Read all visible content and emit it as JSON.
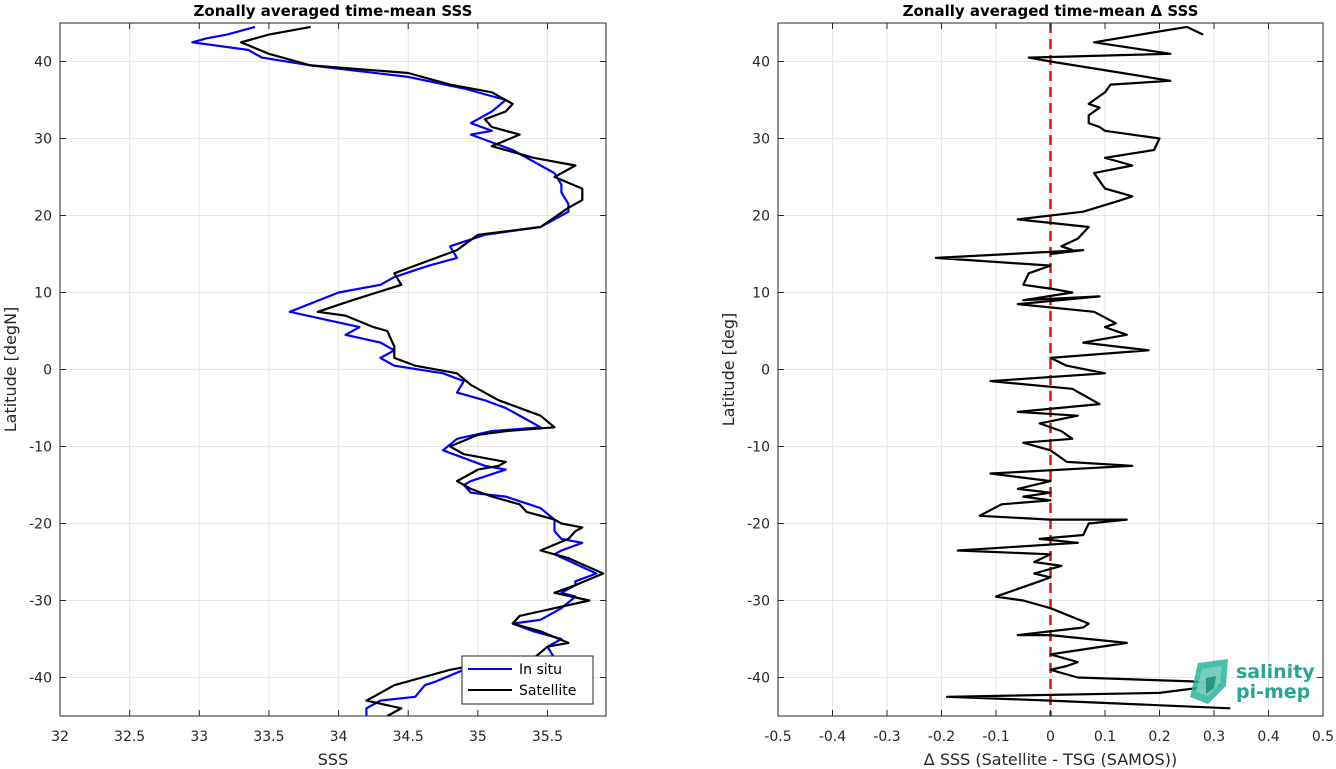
{
  "chart_data": [
    {
      "type": "line",
      "title": "Zonally averaged time-mean SSS",
      "xlabel": "SSS",
      "ylabel": "Latitude [degN]",
      "xlim": [
        32,
        35.92
      ],
      "ylim": [
        -45,
        45
      ],
      "xticks": [
        32,
        32.5,
        33,
        33.5,
        34,
        34.5,
        35,
        35.5
      ],
      "xtick_labels": [
        "32",
        "32.5",
        "33",
        "33.5",
        "34",
        "34.5",
        "35",
        "35.5"
      ],
      "yticks": [
        -40,
        -30,
        -20,
        -10,
        0,
        10,
        20,
        30,
        40
      ],
      "ytick_labels": [
        "-40",
        "-30",
        "-20",
        "-10",
        "0",
        "10",
        "20",
        "30",
        "40"
      ],
      "grid": true,
      "legend_location": "bottom-right",
      "series": [
        {
          "name": "In situ",
          "color": "#0000ff",
          "points": [
            [
              33.4,
              44.5
            ],
            [
              33.2,
              43.5
            ],
            [
              33.05,
              43
            ],
            [
              32.95,
              42.5
            ],
            [
              33.35,
              41.5
            ],
            [
              33.45,
              40.5
            ],
            [
              33.8,
              39.5
            ],
            [
              34.5,
              38
            ],
            [
              34.9,
              36.5
            ],
            [
              35.2,
              35
            ],
            [
              35.1,
              33.5
            ],
            [
              34.95,
              32
            ],
            [
              35.1,
              31
            ],
            [
              34.95,
              30.5
            ],
            [
              35.25,
              28.5
            ],
            [
              35.55,
              25.5
            ],
            [
              35.6,
              24
            ],
            [
              35.6,
              23
            ],
            [
              35.65,
              21.5
            ],
            [
              35.65,
              20.5
            ],
            [
              35.45,
              18.5
            ],
            [
              35.05,
              17.5
            ],
            [
              34.8,
              16
            ],
            [
              34.85,
              14.5
            ],
            [
              34.65,
              13.5
            ],
            [
              34.4,
              12
            ],
            [
              34.3,
              11
            ],
            [
              34.0,
              10
            ],
            [
              33.65,
              7.5
            ],
            [
              34.15,
              5.5
            ],
            [
              34.05,
              4.5
            ],
            [
              34.3,
              3.5
            ],
            [
              34.4,
              2.5
            ],
            [
              34.3,
              1.5
            ],
            [
              34.4,
              0.5
            ],
            [
              34.75,
              -0.5
            ],
            [
              34.9,
              -1.5
            ],
            [
              34.85,
              -3
            ],
            [
              35.05,
              -4
            ],
            [
              35.2,
              -5
            ],
            [
              35.4,
              -7
            ],
            [
              35.45,
              -7.5
            ],
            [
              35.1,
              -8
            ],
            [
              34.85,
              -9
            ],
            [
              34.75,
              -10.5
            ],
            [
              35.05,
              -12.5
            ],
            [
              35.2,
              -13
            ],
            [
              34.95,
              -14.5
            ],
            [
              34.9,
              -15
            ],
            [
              34.95,
              -16
            ],
            [
              35.2,
              -16.5
            ],
            [
              35.45,
              -18
            ],
            [
              35.55,
              -19.5
            ],
            [
              35.55,
              -21
            ],
            [
              35.6,
              -22
            ],
            [
              35.75,
              -22.5
            ],
            [
              35.6,
              -23.5
            ],
            [
              35.55,
              -24
            ],
            [
              35.85,
              -26.5
            ],
            [
              35.7,
              -27.5
            ],
            [
              35.7,
              -28
            ],
            [
              35.6,
              -29
            ],
            [
              35.7,
              -29.5
            ],
            [
              35.6,
              -31
            ],
            [
              35.45,
              -32.5
            ],
            [
              35.25,
              -33
            ],
            [
              35.4,
              -34
            ],
            [
              35.6,
              -35
            ],
            [
              35.5,
              -36
            ],
            [
              35.55,
              -37.5
            ],
            [
              35.1,
              -38
            ],
            [
              34.9,
              -39
            ],
            [
              34.7,
              -40.5
            ],
            [
              34.62,
              -41
            ],
            [
              34.55,
              -42.5
            ],
            [
              34.3,
              -43
            ],
            [
              34.2,
              -44
            ],
            [
              34.2,
              -45
            ]
          ]
        },
        {
          "name": "Satellite",
          "color": "#000000",
          "points": [
            [
              33.8,
              44.5
            ],
            [
              33.5,
              43.5
            ],
            [
              33.3,
              42.5
            ],
            [
              33.5,
              41
            ],
            [
              33.8,
              39.5
            ],
            [
              34.5,
              38.5
            ],
            [
              34.8,
              37
            ],
            [
              35.1,
              36
            ],
            [
              35.25,
              34.5
            ],
            [
              35.2,
              33.5
            ],
            [
              35.05,
              32.5
            ],
            [
              35.1,
              31.5
            ],
            [
              35.3,
              30.5
            ],
            [
              35.1,
              29
            ],
            [
              35.4,
              27.5
            ],
            [
              35.7,
              26.5
            ],
            [
              35.55,
              25
            ],
            [
              35.75,
              23.5
            ],
            [
              35.75,
              22
            ],
            [
              35.65,
              21
            ],
            [
              35.45,
              18.5
            ],
            [
              35.0,
              17.5
            ],
            [
              34.85,
              15.5
            ],
            [
              34.7,
              14.5
            ],
            [
              34.4,
              12.5
            ],
            [
              34.45,
              11
            ],
            [
              34.1,
              9
            ],
            [
              33.85,
              7.5
            ],
            [
              34.05,
              7
            ],
            [
              34.25,
              5.5
            ],
            [
              34.35,
              5
            ],
            [
              34.4,
              3
            ],
            [
              34.4,
              2
            ],
            [
              34.4,
              1.5
            ],
            [
              34.55,
              0.5
            ],
            [
              34.85,
              -0.5
            ],
            [
              34.95,
              -2
            ],
            [
              35.15,
              -4
            ],
            [
              35.45,
              -6
            ],
            [
              35.55,
              -7.5
            ],
            [
              35.2,
              -8
            ],
            [
              35.0,
              -8.5
            ],
            [
              34.8,
              -10
            ],
            [
              34.9,
              -11
            ],
            [
              35.2,
              -12
            ],
            [
              35.15,
              -12.5
            ],
            [
              35.0,
              -13
            ],
            [
              34.85,
              -14.5
            ],
            [
              34.95,
              -15.5
            ],
            [
              35.1,
              -16.5
            ],
            [
              35.3,
              -17.5
            ],
            [
              35.35,
              -18.5
            ],
            [
              35.55,
              -19.5
            ],
            [
              35.6,
              -20
            ],
            [
              35.75,
              -20.5
            ],
            [
              35.7,
              -21
            ],
            [
              35.65,
              -22
            ],
            [
              35.45,
              -23.5
            ],
            [
              35.65,
              -24.5
            ],
            [
              35.9,
              -26.5
            ],
            [
              35.7,
              -28
            ],
            [
              35.55,
              -29
            ],
            [
              35.8,
              -30
            ],
            [
              35.55,
              -31
            ],
            [
              35.3,
              -32
            ],
            [
              35.25,
              -33
            ],
            [
              35.45,
              -34
            ],
            [
              35.65,
              -35.5
            ],
            [
              35.5,
              -36
            ],
            [
              35.4,
              -37.5
            ],
            [
              35.1,
              -38
            ],
            [
              34.8,
              -39
            ],
            [
              34.6,
              -40
            ],
            [
              34.4,
              -41
            ],
            [
              34.25,
              -42.5
            ],
            [
              34.2,
              -43
            ],
            [
              34.45,
              -44
            ],
            [
              34.35,
              -45
            ]
          ]
        }
      ]
    },
    {
      "type": "line",
      "title": "Zonally averaged time-mean Δ SSS",
      "xlabel": "Δ SSS (Satellite - TSG (SAMOS))",
      "ylabel": "Latitude [deg]",
      "xlim": [
        -0.5,
        0.5
      ],
      "ylim": [
        -45,
        45
      ],
      "xticks": [
        -0.5,
        -0.4,
        -0.3,
        -0.2,
        -0.1,
        0,
        0.1,
        0.2,
        0.3,
        0.4,
        0.5
      ],
      "xtick_labels": [
        "-0.5",
        "-0.4",
        "-0.3",
        "-0.2",
        "-0.1",
        "0",
        "0.1",
        "0.2",
        "0.3",
        "0.4",
        "0.5"
      ],
      "yticks": [
        -40,
        -30,
        -20,
        -10,
        0,
        10,
        20,
        30,
        40
      ],
      "ytick_labels": [
        "-40",
        "-30",
        "-20",
        "-10",
        "0",
        "10",
        "20",
        "30",
        "40"
      ],
      "grid": true,
      "reference_line": {
        "x": 0,
        "color": "#dd1111",
        "style": "dashed"
      },
      "series": [
        {
          "color": "#000000",
          "points": [
            [
              0.28,
              43.5
            ],
            [
              0.25,
              44.5
            ],
            [
              0.08,
              42.5
            ],
            [
              0.22,
              41
            ],
            [
              -0.04,
              40.5
            ],
            [
              0.0,
              40
            ],
            [
              0.22,
              37.5
            ],
            [
              0.11,
              37
            ],
            [
              0.1,
              36
            ],
            [
              0.09,
              35.5
            ],
            [
              0.07,
              34.5
            ],
            [
              0.09,
              34
            ],
            [
              0.07,
              33
            ],
            [
              0.07,
              32
            ],
            [
              0.09,
              31.5
            ],
            [
              0.1,
              31
            ],
            [
              0.2,
              30
            ],
            [
              0.19,
              28.5
            ],
            [
              0.1,
              27.5
            ],
            [
              0.15,
              26.5
            ],
            [
              0.08,
              25.5
            ],
            [
              0.1,
              23.5
            ],
            [
              0.15,
              22.5
            ],
            [
              0.13,
              22
            ],
            [
              0.06,
              20.5
            ],
            [
              -0.06,
              19.5
            ],
            [
              0.07,
              18.5
            ],
            [
              0.05,
              17
            ],
            [
              0.02,
              16
            ],
            [
              0.04,
              15.5
            ],
            [
              0.0,
              15
            ],
            [
              0.06,
              15.5
            ],
            [
              -0.21,
              14.5
            ],
            [
              0.0,
              13.5
            ],
            [
              -0.04,
              12.5
            ],
            [
              -0.05,
              11
            ],
            [
              0.0,
              10.5
            ],
            [
              0.04,
              10
            ],
            [
              -0.05,
              9
            ],
            [
              0.09,
              9.5
            ],
            [
              -0.06,
              8.5
            ],
            [
              0.08,
              7.5
            ],
            [
              0.12,
              6
            ],
            [
              0.1,
              5.5
            ],
            [
              0.14,
              4.5
            ],
            [
              0.06,
              3.5
            ],
            [
              0.18,
              2.5
            ],
            [
              0.0,
              1.5
            ],
            [
              0.03,
              0.5
            ],
            [
              0.1,
              -0.5
            ],
            [
              -0.11,
              -1.5
            ],
            [
              0.04,
              -2.5
            ],
            [
              0.09,
              -4.5
            ],
            [
              -0.06,
              -5.5
            ],
            [
              0.05,
              -6
            ],
            [
              -0.02,
              -7
            ],
            [
              0.02,
              -8
            ],
            [
              0.04,
              -9
            ],
            [
              -0.05,
              -9.5
            ],
            [
              0.0,
              -10.5
            ],
            [
              0.03,
              -12
            ],
            [
              0.15,
              -12.5
            ],
            [
              -0.11,
              -13.5
            ],
            [
              0.0,
              -14.5
            ],
            [
              -0.06,
              -15.5
            ],
            [
              0.0,
              -16
            ],
            [
              -0.05,
              -16.5
            ],
            [
              0.0,
              -17
            ],
            [
              -0.09,
              -17.5
            ],
            [
              -0.13,
              -19
            ],
            [
              0.0,
              -19.5
            ],
            [
              0.14,
              -19.5
            ],
            [
              0.07,
              -20
            ],
            [
              0.06,
              -21.5
            ],
            [
              -0.02,
              -22
            ],
            [
              0.05,
              -22.5
            ],
            [
              -0.17,
              -23.5
            ],
            [
              0.0,
              -24
            ],
            [
              -0.03,
              -25
            ],
            [
              0.02,
              -25.5
            ],
            [
              -0.03,
              -26.5
            ],
            [
              0.0,
              -27
            ],
            [
              -0.02,
              -27.5
            ],
            [
              -0.1,
              -29.5
            ],
            [
              -0.05,
              -30
            ],
            [
              0.0,
              -31
            ],
            [
              0.07,
              -33
            ],
            [
              0.06,
              -33.5
            ],
            [
              -0.06,
              -34.5
            ],
            [
              0.0,
              -34.5
            ],
            [
              0.14,
              -35.5
            ],
            [
              0.0,
              -37
            ],
            [
              0.05,
              -38
            ],
            [
              0.03,
              -38.5
            ],
            [
              0.0,
              -39
            ],
            [
              0.05,
              -40
            ],
            [
              0.26,
              -40.5
            ],
            [
              0.31,
              -41
            ],
            [
              0.2,
              -42
            ],
            [
              -0.19,
              -42.5
            ],
            [
              0.0,
              -43
            ],
            [
              0.33,
              -44
            ]
          ]
        }
      ]
    }
  ],
  "legend": {
    "entries": [
      "In situ",
      "Satellite"
    ]
  },
  "logo": {
    "line1": "salinity",
    "line2": "pi-mep",
    "color": "#26a693"
  }
}
